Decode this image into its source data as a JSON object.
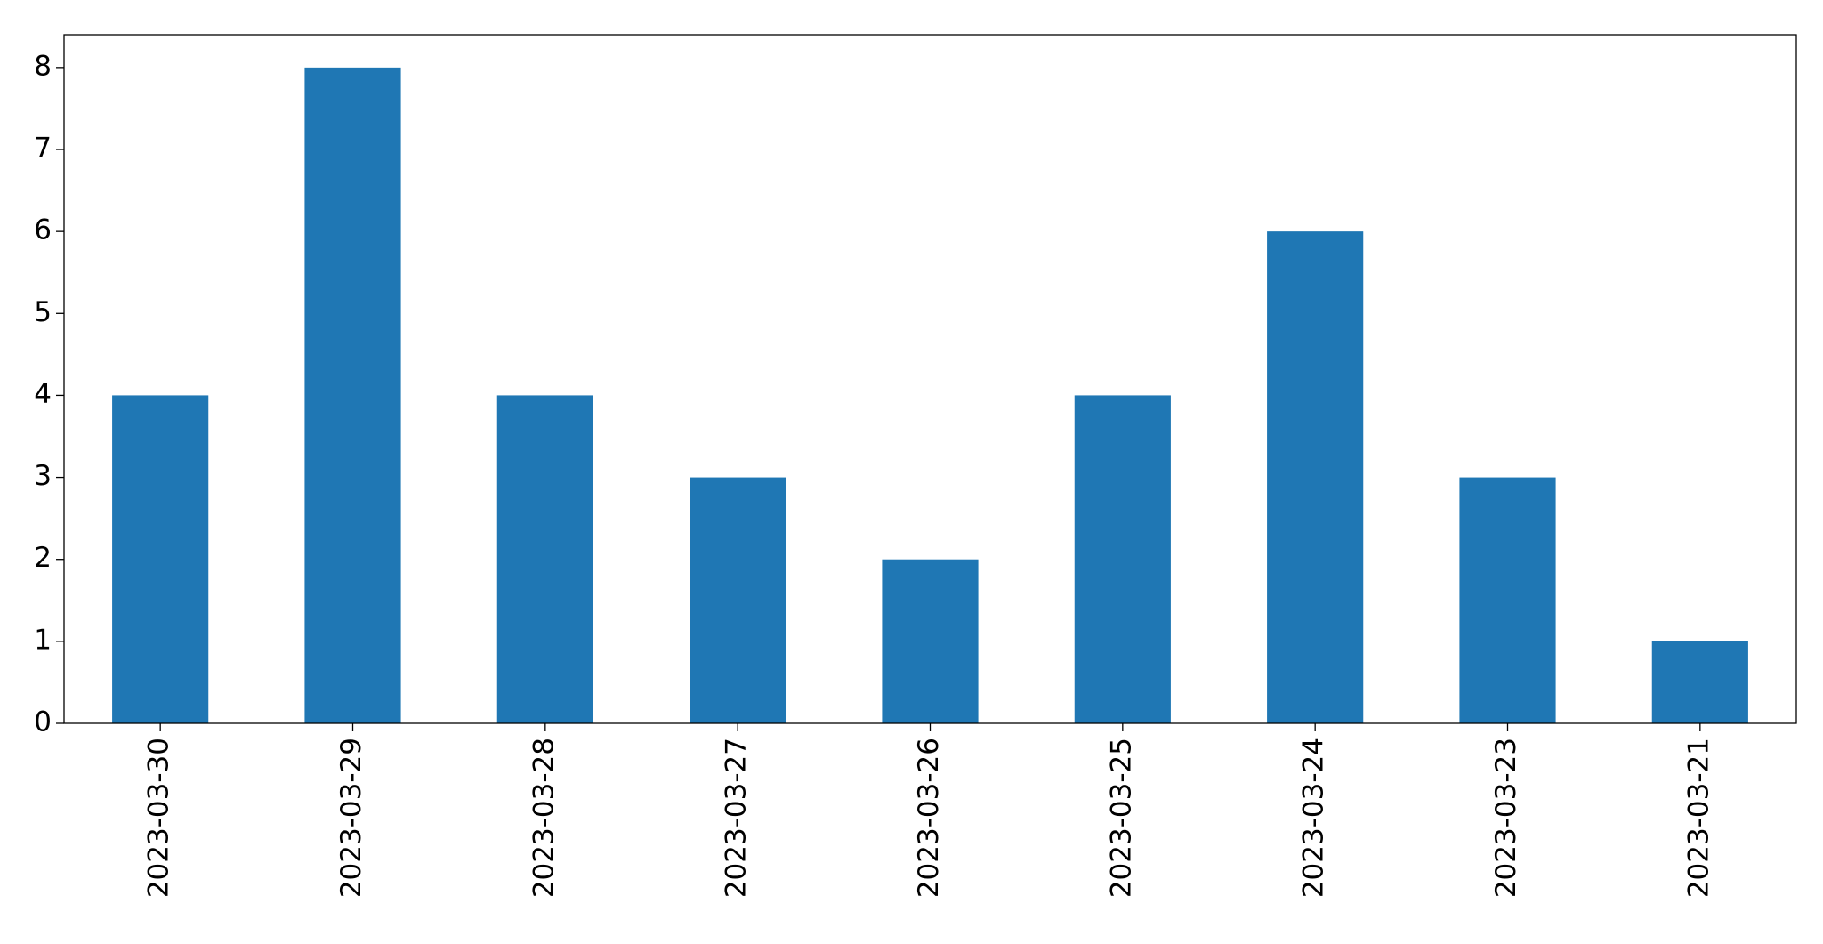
{
  "chart_data": {
    "type": "bar",
    "categories": [
      "2023-03-30",
      "2023-03-29",
      "2023-03-28",
      "2023-03-27",
      "2023-03-26",
      "2023-03-25",
      "2023-03-24",
      "2023-03-23",
      "2023-03-21"
    ],
    "values": [
      4,
      8,
      4,
      3,
      2,
      4,
      6,
      3,
      1
    ],
    "color": "#1f77b4",
    "ylim": [
      0,
      8.4
    ],
    "yticks": [
      0,
      1,
      2,
      3,
      4,
      5,
      6,
      7,
      8
    ],
    "grid": false
  }
}
